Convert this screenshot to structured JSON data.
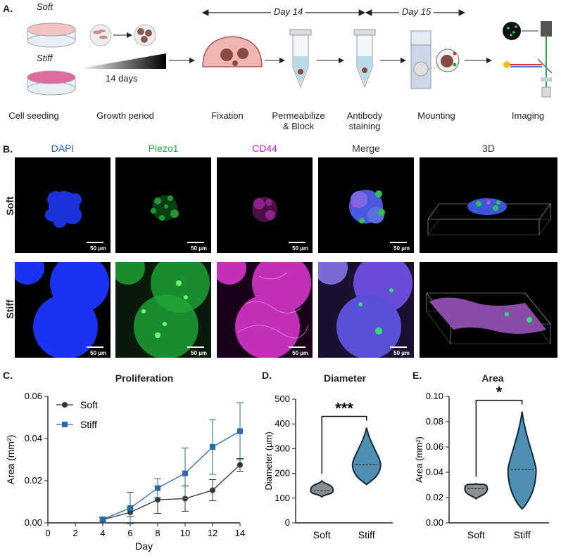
{
  "panelA": {
    "letter": "A.",
    "day14": "Day 14",
    "day15": "Day 15",
    "soft": "Soft",
    "stiff": "Stiff",
    "days": "14 days",
    "steps": [
      "Cell seeding",
      "Growth period",
      "Fixation",
      "Permeabilize\n& Block",
      "Antibody\nstaining",
      "Mounting",
      "Imaging"
    ]
  },
  "panelB": {
    "letter": "B.",
    "channels": [
      "DAPI",
      "Piezo1",
      "CD44",
      "Merge",
      "3D"
    ],
    "channel_colors": [
      "#1f5fd6",
      "#1aa84a",
      "#d01fbd",
      "#333333",
      "#333333"
    ],
    "rows": [
      "Soft",
      "Stiff"
    ],
    "scale_bar": "50 µm"
  },
  "panelC": {
    "letter": "C.",
    "chart_data": {
      "type": "line",
      "title": "Proliferation",
      "xlabel": "Day",
      "ylabel": "Area (mm²)",
      "xlim": [
        0,
        14
      ],
      "ylim": [
        0,
        0.06
      ],
      "xticks": [
        0,
        2,
        4,
        6,
        8,
        10,
        12,
        14
      ],
      "yticks": [
        "0.00",
        "0.02",
        "0.04",
        "0.06"
      ],
      "legend": "top-left",
      "series": [
        {
          "name": "Soft",
          "color": "#333333",
          "marker": "circle",
          "x": [
            4,
            6,
            8,
            10,
            12,
            14
          ],
          "y": [
            0.0015,
            0.005,
            0.011,
            0.0115,
            0.0155,
            0.0275
          ],
          "err": [
            0.0008,
            0.002,
            0.0065,
            0.006,
            0.005,
            0.003
          ]
        },
        {
          "name": "Stiff",
          "color": "#2a6aa8",
          "marker": "square",
          "x": [
            4,
            6,
            8,
            10,
            12,
            14
          ],
          "y": [
            0.0017,
            0.007,
            0.0165,
            0.0235,
            0.036,
            0.0435
          ],
          "err": [
            0.0008,
            0.0075,
            0.0045,
            0.012,
            0.013,
            0.0135
          ]
        }
      ]
    }
  },
  "panelD": {
    "letter": "D.",
    "chart_data": {
      "type": "violin",
      "title": "Diameter",
      "ylabel": "Diameter (µm)",
      "ylim": [
        0,
        500
      ],
      "yticks": [
        0,
        100,
        200,
        300,
        400,
        500
      ],
      "categories": [
        "Soft",
        "Stiff"
      ],
      "median": [
        130,
        235
      ],
      "min": [
        105,
        155
      ],
      "max": [
        170,
        385
      ],
      "significance": "***"
    }
  },
  "panelE": {
    "letter": "E.",
    "chart_data": {
      "type": "violin",
      "title": "Area",
      "ylabel": "Area (mm²)",
      "ylim": [
        0,
        0.1
      ],
      "yticks": [
        "0.00",
        "0.02",
        "0.04",
        "0.06",
        "0.08",
        "0.10"
      ],
      "categories": [
        "Soft",
        "Stiff"
      ],
      "median": [
        0.027,
        0.042
      ],
      "min": [
        0.019,
        0.011
      ],
      "max": [
        0.031,
        0.088
      ],
      "significance": "*"
    }
  }
}
